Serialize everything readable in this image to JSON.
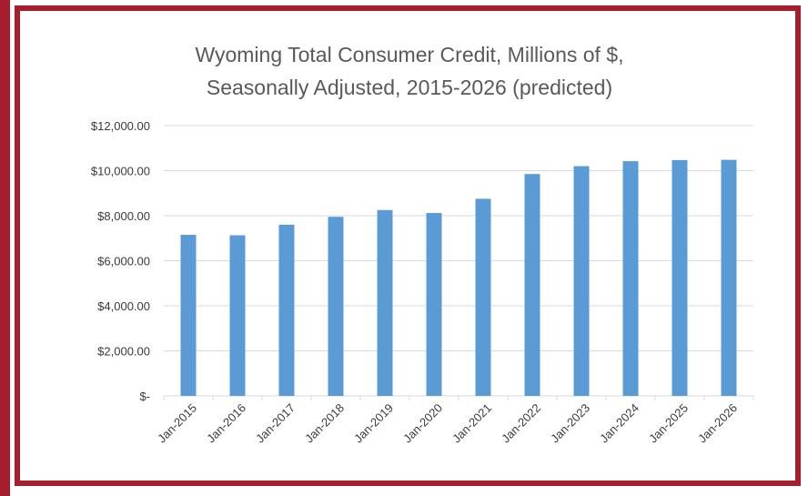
{
  "colors": {
    "frame": "#a61e2e",
    "bar": "#5b9bd5",
    "grid": "#d9d9d9",
    "text": "#595959"
  },
  "chart_data": {
    "type": "bar",
    "title": "Wyoming Total Consumer Credit, Millions of $,",
    "subtitle": "Seasonally Adjusted, 2015-2026 (predicted)",
    "categories": [
      "Jan-2015",
      "Jan-2016",
      "Jan-2017",
      "Jan-2018",
      "Jan-2019",
      "Jan-2020",
      "Jan-2021",
      "Jan-2022",
      "Jan-2023",
      "Jan-2024",
      "Jan-2025",
      "Jan-2026"
    ],
    "values": [
      7150,
      7130,
      7600,
      7950,
      8250,
      8120,
      8750,
      9850,
      10200,
      10420,
      10470,
      10480
    ],
    "ylim": [
      0,
      12000
    ],
    "yticks": [
      0,
      2000,
      4000,
      6000,
      8000,
      10000,
      12000
    ],
    "ytick_labels": [
      "$-",
      "$2,000.00",
      "$4,000.00",
      "$6,000.00",
      "$8,000.00",
      "$10,000.00",
      "$12,000.00"
    ],
    "grid": true,
    "legend": "none"
  }
}
